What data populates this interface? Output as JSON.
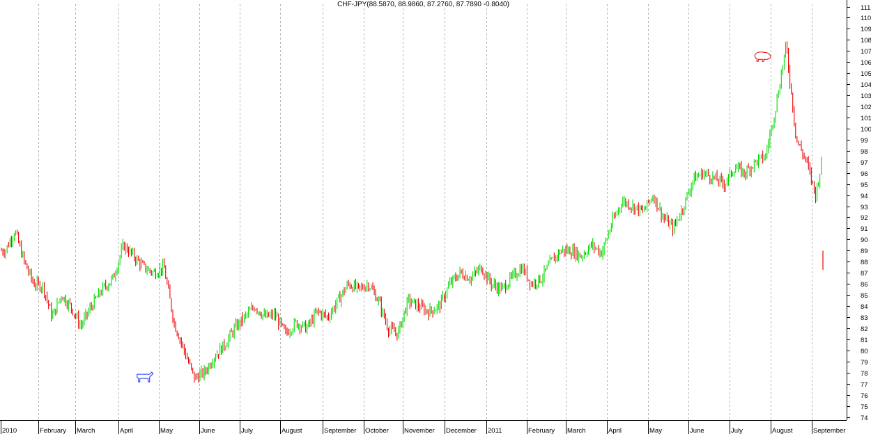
{
  "chart_data": {
    "type": "candlestick",
    "title": "CHF-JPY(88.5870, 88.9860, 87.2760, 87.7890 -0.8040)",
    "ylim": [
      74,
      111
    ],
    "y_ticks": [
      74,
      75,
      76,
      77,
      78,
      79,
      80,
      81,
      82,
      83,
      84,
      85,
      86,
      87,
      88,
      89,
      90,
      91,
      92,
      93,
      94,
      95,
      96,
      97,
      98,
      99,
      100,
      101,
      102,
      103,
      104,
      105,
      106,
      107,
      108,
      109,
      110,
      111
    ],
    "grid": "vertical-dashed-monthly",
    "colors": {
      "up": "#00dd00",
      "down": "#ee0000",
      "grid": "#b4b4b4",
      "axis": "#000000",
      "bull_icon": "#2233ee",
      "bear_icon": "#ee0000"
    },
    "x_months": [
      "2010",
      "February",
      "March",
      "April",
      "May",
      "June",
      "July",
      "August",
      "September",
      "October",
      "November",
      "December",
      "2011",
      "February",
      "March",
      "April",
      "May",
      "June",
      "July",
      "August",
      "September"
    ],
    "close_path": [
      [
        "2010-01",
        89.0
      ],
      [
        "2010-01",
        90.8
      ],
      [
        "2010-01",
        88.0
      ],
      [
        "2010-01",
        86.0
      ],
      [
        "2010-02",
        85.8
      ],
      [
        "2010-02",
        83.0
      ],
      [
        "2010-02",
        85.0
      ],
      [
        "2010-02",
        84.0
      ],
      [
        "2010-03",
        82.2
      ],
      [
        "2010-03",
        84.0
      ],
      [
        "2010-03",
        85.5
      ],
      [
        "2010-03",
        86.5
      ],
      [
        "2010-04",
        89.5
      ],
      [
        "2010-04",
        88.5
      ],
      [
        "2010-04",
        87.5
      ],
      [
        "2010-04",
        87.0
      ],
      [
        "2010-05",
        87.5
      ],
      [
        "2010-05",
        82.5
      ],
      [
        "2010-05",
        80.0
      ],
      [
        "2010-05",
        77.5
      ],
      [
        "2010-06",
        78.0
      ],
      [
        "2010-06",
        79.5
      ],
      [
        "2010-06",
        80.5
      ],
      [
        "2010-06",
        82.0
      ],
      [
        "2010-07",
        83.0
      ],
      [
        "2010-07",
        84.0
      ],
      [
        "2010-07",
        83.0
      ],
      [
        "2010-07",
        83.2
      ],
      [
        "2010-08",
        81.5
      ],
      [
        "2010-08",
        82.5
      ],
      [
        "2010-08",
        82.0
      ],
      [
        "2010-08",
        83.5
      ],
      [
        "2010-09",
        83.0
      ],
      [
        "2010-09",
        84.5
      ],
      [
        "2010-09",
        86.0
      ],
      [
        "2010-09",
        85.5
      ],
      [
        "2010-10",
        86.0
      ],
      [
        "2010-10",
        84.5
      ],
      [
        "2010-10",
        82.0
      ],
      [
        "2010-10",
        81.5
      ],
      [
        "2010-11",
        84.5
      ],
      [
        "2010-11",
        84.0
      ],
      [
        "2010-11",
        83.5
      ],
      [
        "2010-11",
        84.0
      ],
      [
        "2010-12",
        86.0
      ],
      [
        "2010-12",
        87.0
      ],
      [
        "2010-12",
        86.5
      ],
      [
        "2010-12",
        87.5
      ],
      [
        "2011-01",
        86.0
      ],
      [
        "2011-01",
        85.5
      ],
      [
        "2011-01",
        86.5
      ],
      [
        "2011-01",
        87.5
      ],
      [
        "2011-02",
        86.0
      ],
      [
        "2011-02",
        86.5
      ],
      [
        "2011-02",
        88.0
      ],
      [
        "2011-02",
        89.0
      ],
      [
        "2011-03",
        89.0
      ],
      [
        "2011-03",
        88.5
      ],
      [
        "2011-03",
        89.5
      ],
      [
        "2011-03",
        88.8
      ],
      [
        "2011-04",
        91.5
      ],
      [
        "2011-04",
        93.5
      ],
      [
        "2011-04",
        93.0
      ],
      [
        "2011-04",
        92.5
      ],
      [
        "2011-05",
        94.0
      ],
      [
        "2011-05",
        92.0
      ],
      [
        "2011-05",
        91.0
      ],
      [
        "2011-05",
        93.0
      ],
      [
        "2011-06",
        95.5
      ],
      [
        "2011-06",
        96.0
      ],
      [
        "2011-06",
        95.5
      ],
      [
        "2011-06",
        95.0
      ],
      [
        "2011-07",
        96.5
      ],
      [
        "2011-07",
        96.0
      ],
      [
        "2011-07",
        97.0
      ],
      [
        "2011-07",
        97.5
      ],
      [
        "2011-08",
        102.0
      ],
      [
        "2011-08",
        107.5
      ],
      [
        "2011-08",
        99.0
      ],
      [
        "2011-08",
        97.0
      ],
      [
        "2011-09",
        94.0
      ],
      [
        "2011-09",
        98.0
      ],
      [
        "2011-09",
        89.5
      ],
      [
        "2011-09",
        87.8
      ]
    ],
    "last_bar": {
      "open": 88.587,
      "high": 88.986,
      "low": 87.276,
      "close": 87.789,
      "change": -0.804
    },
    "annotations": [
      {
        "icon": "bull-icon",
        "date": "2010-04-20",
        "price": 77.6
      },
      {
        "icon": "bear-icon",
        "date": "2011-07-25",
        "price": 106.5
      }
    ]
  }
}
